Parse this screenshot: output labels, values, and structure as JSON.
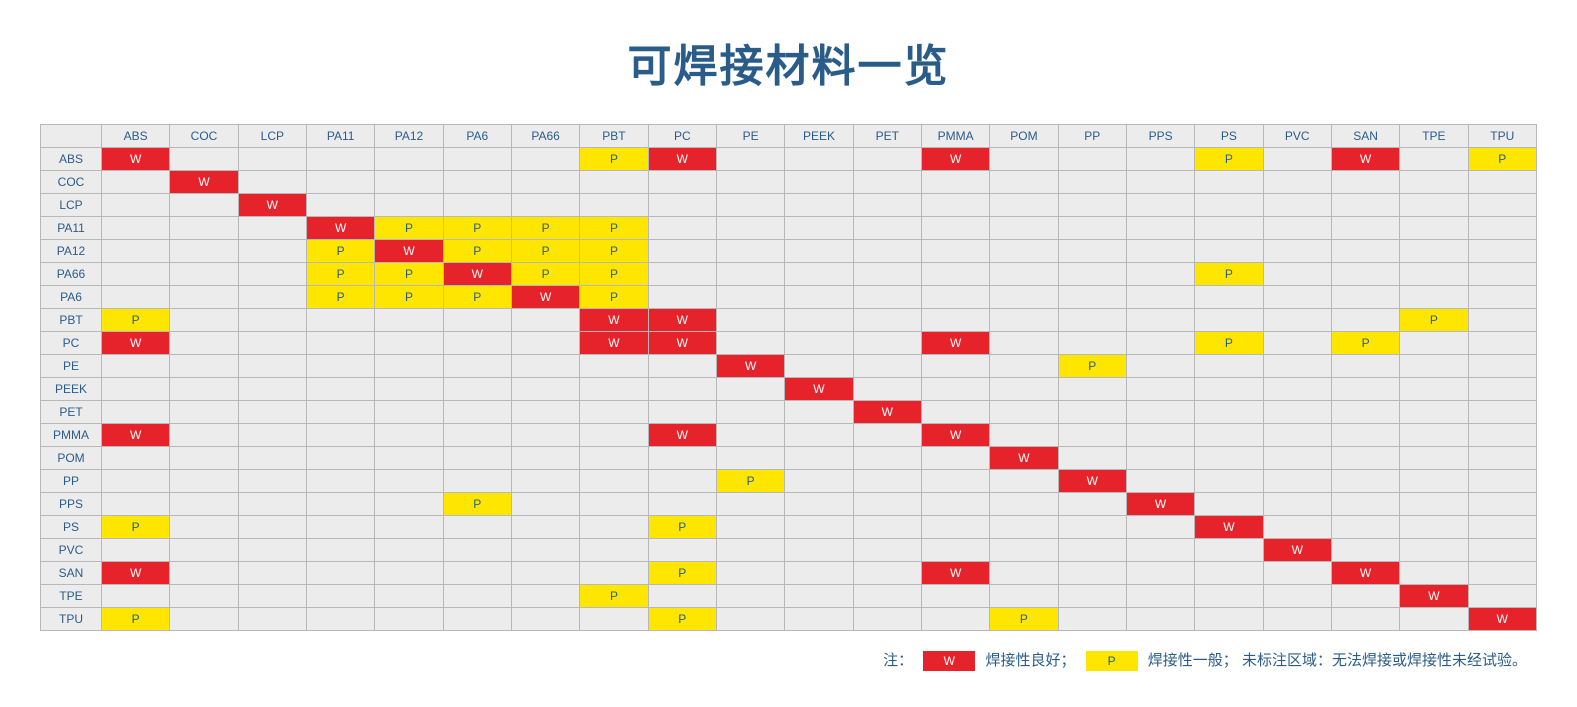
{
  "title": "可焊接材料一览",
  "columns": [
    "ABS",
    "COC",
    "LCP",
    "PA11",
    "PA12",
    "PA6",
    "PA66",
    "PBT",
    "PC",
    "PE",
    "PEEK",
    "PET",
    "PMMA",
    "POM",
    "PP",
    "PPS",
    "PS",
    "PVC",
    "SAN",
    "TPE",
    "TPU"
  ],
  "rows": [
    "ABS",
    "COC",
    "LCP",
    "PA11",
    "PA12",
    "PA66",
    "PA6",
    "PBT",
    "PC",
    "PE",
    "PEEK",
    "PET",
    "PMMA",
    "POM",
    "PP",
    "PPS",
    "PS",
    "PVC",
    "SAN",
    "TPE",
    "TPU"
  ],
  "cells": {
    "ABS": {
      "ABS": "W",
      "PBT": "P",
      "PC": "W",
      "PMMA": "W",
      "PS": "P",
      "SAN": "W",
      "TPU": "P"
    },
    "COC": {
      "COC": "W"
    },
    "LCP": {
      "LCP": "W"
    },
    "PA11": {
      "PA11": "W",
      "PA12": "P",
      "PA6": "P",
      "PA66": "P",
      "PBT": "P"
    },
    "PA12": {
      "PA11": "P",
      "PA12": "W",
      "PA6": "P",
      "PA66": "P",
      "PBT": "P"
    },
    "PA66": {
      "PA11": "P",
      "PA12": "P",
      "PA6": "W",
      "PA66": "P",
      "PBT": "P",
      "PS": "P"
    },
    "PA6": {
      "PA11": "P",
      "PA12": "P",
      "PA6": "P",
      "PA66": "W",
      "PBT": "P"
    },
    "PBT": {
      "ABS": "P",
      "PBT": "W",
      "PC": "W",
      "TPE": "P"
    },
    "PC": {
      "ABS": "W",
      "PBT": "W",
      "PC": "W",
      "PMMA": "W",
      "PS": "P",
      "SAN": "P"
    },
    "PE": {
      "PE": "W",
      "PP": "P"
    },
    "PEEK": {
      "PEEK": "W"
    },
    "PET": {
      "PET": "W"
    },
    "PMMA": {
      "ABS": "W",
      "PC": "W",
      "PMMA": "W"
    },
    "POM": {
      "POM": "W"
    },
    "PP": {
      "PE": "P",
      "PP": "W"
    },
    "PPS": {
      "PA6": "P",
      "PPS": "W"
    },
    "PS": {
      "ABS": "P",
      "PC": "P",
      "PS": "W"
    },
    "PVC": {
      "PVC": "W"
    },
    "SAN": {
      "ABS": "W",
      "PC": "P",
      "PMMA": "W",
      "SAN": "W"
    },
    "TPE": {
      "PBT": "P",
      "TPE": "W"
    },
    "TPU": {
      "ABS": "P",
      "PC": "P",
      "POM": "P",
      "TPU": "W"
    }
  },
  "symbols": {
    "W": "W",
    "P": "P"
  },
  "colors": {
    "W_bg": "#e6232a",
    "W_fg": "#ffffff",
    "P_bg": "#ffe600",
    "P_fg": "#2a5c8a",
    "empty_bg": "#ececec",
    "border": "#b8b8b8",
    "title_color": "#2a5c8a"
  },
  "legend": {
    "prefix": "注：",
    "w_label": "焊接性良好；",
    "p_label": "焊接性一般；",
    "rest": "未标注区域：无法焊接或焊接性未经试验。"
  }
}
